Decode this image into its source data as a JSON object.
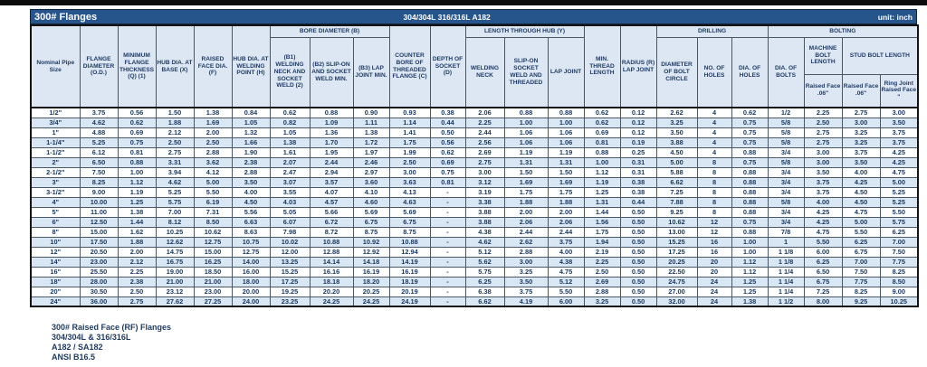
{
  "colors": {
    "title_bar_bg": "#26558B",
    "header_bg": "#DCE7F3",
    "row_alt_bg": "#D9E6F4",
    "text": "#17375E"
  },
  "title_bar": {
    "title": "300# Flanges",
    "material": "304/304L 316/316L A182",
    "unit": "unit: inch"
  },
  "header": {
    "nominal": "Nominal Pipe Size",
    "flange_od": "FLANGE DIAMETER (O.D.)",
    "min_thickness": "MINIMUM FLANGE THICKNESS (Q) (1)",
    "hub_base": "HUB DIA. AT BASE (X)",
    "raised_face": "RAISED FACE DIA. (F)",
    "hub_weld": "HUB DIA. AT WELDING POINT (H)",
    "bore_group": "BORE DIAMETER (B)",
    "b1": "(B1) WELDING NECK AND SOCKET WELD (2)",
    "b2": "(B2) SLIP-ON AND SOCKET WELD MIN.",
    "b3": "(B3) LAP JOINT MIN.",
    "counter_bore": "COUNTER BORE OF THREADED FLANGE (C)",
    "socket_depth": "DEPTH OF SOCKET (D)",
    "length_group": "LENGTH THROUGH HUB (Y)",
    "welding_neck": "WELDING NECK",
    "slip_on": "SLIP-ON SOCKET WELD AND THREADED",
    "lap_joint": "LAP JOINT",
    "min_thread": "MIN. THREAD LENGTH",
    "radius": "RADIUS (R) LAP JOINT",
    "drilling_group": "DRILLING",
    "bolt_circle": "DIAMETER OF BOLT CIRCLE",
    "no_holes": "NO. OF HOLES",
    "dia_holes": "DIA. OF HOLES",
    "bolting_group": "BOLTING",
    "dia_bolts": "DIA. OF BOLTS",
    "machine_bolt": "MACHINE BOLT LENGTH",
    "stud_bolt": "STUD BOLT LENGTH",
    "machine_rf": "Raised Face .06\"",
    "stud_rf": "Raised Face .06\"",
    "stud_rj": "Ring Joint Raised Face \""
  },
  "table": {
    "rows": [
      [
        "1/2\"",
        "3.75",
        "0.56",
        "1.50",
        "1.38",
        "0.84",
        "0.62",
        "0.88",
        "0.90",
        "0.93",
        "0.38",
        "2.06",
        "0.88",
        "0.88",
        "0.62",
        "0.12",
        "2.62",
        "4",
        "0.62",
        "1/2",
        "2.25",
        "2.75",
        "3.00"
      ],
      [
        "3/4\"",
        "4.62",
        "0.62",
        "1.88",
        "1.69",
        "1.05",
        "0.82",
        "1.09",
        "1.11",
        "1.14",
        "0.44",
        "2.25",
        "1.00",
        "1.00",
        "0.62",
        "0.12",
        "3.25",
        "4",
        "0.75",
        "5/8",
        "2.50",
        "3.00",
        "3.50"
      ],
      [
        "1\"",
        "4.88",
        "0.69",
        "2.12",
        "2.00",
        "1.32",
        "1.05",
        "1.36",
        "1.38",
        "1.41",
        "0.50",
        "2.44",
        "1.06",
        "1.06",
        "0.69",
        "0.12",
        "3.50",
        "4",
        "0.75",
        "5/8",
        "2.75",
        "3.25",
        "3.75"
      ],
      [
        "1-1/4\"",
        "5.25",
        "0.75",
        "2.50",
        "2.50",
        "1.66",
        "1.38",
        "1.70",
        "1.72",
        "1.75",
        "0.56",
        "2.56",
        "1.06",
        "1.06",
        "0.81",
        "0.19",
        "3.88",
        "4",
        "0.75",
        "5/8",
        "2.75",
        "3.25",
        "3.75"
      ],
      [
        "1-1/2\"",
        "6.12",
        "0.81",
        "2.75",
        "2.88",
        "1.90",
        "1.61",
        "1.95",
        "1.97",
        "1.99",
        "0.62",
        "2.69",
        "1.19",
        "1.19",
        "0.88",
        "0.25",
        "4.50",
        "4",
        "0.88",
        "3/4",
        "3.00",
        "3.75",
        "4.25"
      ],
      [
        "2\"",
        "6.50",
        "0.88",
        "3.31",
        "3.62",
        "2.38",
        "2.07",
        "2.44",
        "2.46",
        "2.50",
        "0.69",
        "2.75",
        "1.31",
        "1.31",
        "1.00",
        "0.31",
        "5.00",
        "8",
        "0.75",
        "5/8",
        "3.00",
        "3.50",
        "4.25"
      ],
      [
        "2-1/2\"",
        "7.50",
        "1.00",
        "3.94",
        "4.12",
        "2.88",
        "2.47",
        "2.94",
        "2.97",
        "3.00",
        "0.75",
        "3.00",
        "1.50",
        "1.50",
        "1.12",
        "0.31",
        "5.88",
        "8",
        "0.88",
        "3/4",
        "3.50",
        "4.00",
        "4.75"
      ],
      [
        "3\"",
        "8.25",
        "1.12",
        "4.62",
        "5.00",
        "3.50",
        "3.07",
        "3.57",
        "3.60",
        "3.63",
        "0.81",
        "3.12",
        "1.69",
        "1.69",
        "1.19",
        "0.38",
        "6.62",
        "8",
        "0.88",
        "3/4",
        "3.75",
        "4.25",
        "5.00"
      ],
      [
        "3-1/2\"",
        "9.00",
        "1.19",
        "5.25",
        "5.50",
        "4.00",
        "3.55",
        "4.07",
        "4.10",
        "4.13",
        "-",
        "3.19",
        "1.75",
        "1.75",
        "1.25",
        "0.38",
        "7.25",
        "8",
        "0.88",
        "3/4",
        "3.75",
        "4.50",
        "5.25"
      ],
      [
        "4\"",
        "10.00",
        "1.25",
        "5.75",
        "6.19",
        "4.50",
        "4.03",
        "4.57",
        "4.60",
        "4.63",
        "-",
        "3.38",
        "1.88",
        "1.88",
        "1.31",
        "0.44",
        "7.88",
        "8",
        "0.88",
        "5/8",
        "4.00",
        "4.50",
        "5.25"
      ],
      [
        "5\"",
        "11.00",
        "1.38",
        "7.00",
        "7.31",
        "5.56",
        "5.05",
        "5.66",
        "5.69",
        "5.69",
        "-",
        "3.88",
        "2.00",
        "2.00",
        "1.44",
        "0.50",
        "9.25",
        "8",
        "0.88",
        "3/4",
        "4.25",
        "4.75",
        "5.50"
      ],
      [
        "6\"",
        "12.50",
        "1.44",
        "8.12",
        "8.50",
        "6.63",
        "6.07",
        "6.72",
        "6.75",
        "6.75",
        "-",
        "3.88",
        "2.06",
        "2.06",
        "1.56",
        "0.50",
        "10.62",
        "12",
        "0.75",
        "3/4",
        "4.25",
        "5.00",
        "5.75"
      ],
      [
        "8\"",
        "15.00",
        "1.62",
        "10.25",
        "10.62",
        "8.63",
        "7.98",
        "8.72",
        "8.75",
        "8.75",
        "-",
        "4.38",
        "2.44",
        "2.44",
        "1.75",
        "0.50",
        "13.00",
        "12",
        "0.88",
        "7/8",
        "4.75",
        "5.50",
        "6.25"
      ],
      [
        "10\"",
        "17.50",
        "1.88",
        "12.62",
        "12.75",
        "10.75",
        "10.02",
        "10.88",
        "10.92",
        "10.88",
        "-",
        "4.62",
        "2.62",
        "3.75",
        "1.94",
        "0.50",
        "15.25",
        "16",
        "1.00",
        "1",
        "5.50",
        "6.25",
        "7.00"
      ],
      [
        "12\"",
        "20.50",
        "2.00",
        "14.75",
        "15.00",
        "12.75",
        "12.00",
        "12.88",
        "12.92",
        "12.94",
        "-",
        "5.12",
        "2.88",
        "4.00",
        "2.19",
        "0.50",
        "17.25",
        "16",
        "1.00",
        "1 1/8",
        "6.00",
        "6.75",
        "7.50"
      ],
      [
        "14\"",
        "23.00",
        "2.12",
        "16.75",
        "16.25",
        "14.00",
        "13.25",
        "14.14",
        "14.18",
        "14.19",
        "-",
        "5.62",
        "3.00",
        "4.38",
        "2.25",
        "0.50",
        "20.25",
        "20",
        "1.12",
        "1 1/8",
        "6.25",
        "7.00",
        "7.75"
      ],
      [
        "16\"",
        "25.50",
        "2.25",
        "19.00",
        "18.50",
        "16.00",
        "15.25",
        "16.16",
        "16.19",
        "16.19",
        "-",
        "5.75",
        "3.25",
        "4.75",
        "2.50",
        "0.50",
        "22.50",
        "20",
        "1.12",
        "1 1/4",
        "6.50",
        "7.50",
        "8.25"
      ],
      [
        "18\"",
        "28.00",
        "2.38",
        "21.00",
        "21.00",
        "18.00",
        "17.25",
        "18.18",
        "18.20",
        "18.19",
        "-",
        "6.25",
        "3.50",
        "5.12",
        "2.69",
        "0.50",
        "24.75",
        "24",
        "1.25",
        "1 1/4",
        "6.75",
        "7.75",
        "8.50"
      ],
      [
        "20\"",
        "30.50",
        "2.50",
        "23.12",
        "23.00",
        "20.00",
        "19.25",
        "20.20",
        "20.25",
        "20.19",
        "-",
        "6.38",
        "3.75",
        "5.50",
        "2.88",
        "0.50",
        "27.00",
        "24",
        "1.25",
        "1 1/4",
        "7.25",
        "8.25",
        "9.00"
      ],
      [
        "24\"",
        "36.00",
        "2.75",
        "27.62",
        "27.25",
        "24.00",
        "23.25",
        "24.25",
        "24.25",
        "24.19",
        "-",
        "6.62",
        "4.19",
        "6.00",
        "3.25",
        "0.50",
        "32.00",
        "24",
        "1.38",
        "1 1/2",
        "8.00",
        "9.25",
        "10.25"
      ]
    ]
  },
  "footer": {
    "lines": [
      "300# Raised Face (RF) Flanges",
      "304/304L & 316/316L",
      "A182 / SA182",
      "ANSI B16.5"
    ]
  }
}
